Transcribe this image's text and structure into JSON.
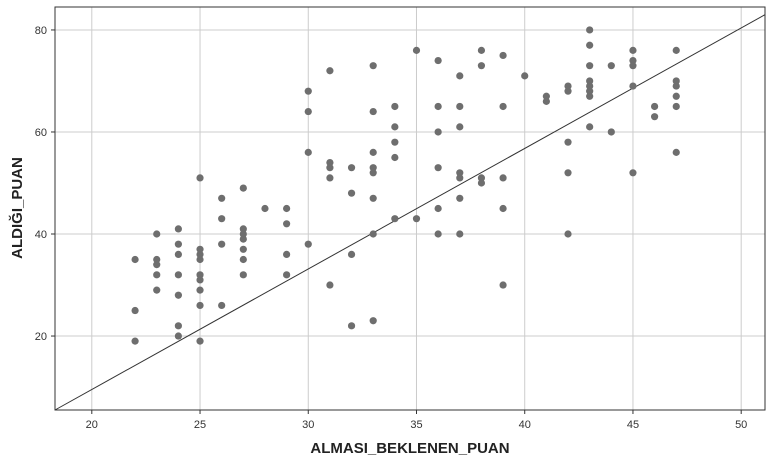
{
  "chart_data": {
    "type": "scatter",
    "title": "",
    "xlabel": "ALMASI_BEKLENEN_PUAN",
    "ylabel": "ALDIĞI_PUAN",
    "xlim": [
      18.3,
      51.1
    ],
    "ylim": [
      5.5,
      84.5
    ],
    "xticks": [
      20,
      25,
      30,
      35,
      40,
      45,
      50
    ],
    "yticks": [
      20,
      40,
      60,
      80
    ],
    "grid": true,
    "colors": {
      "points": "#6e6e6e",
      "grid": "#cccccc",
      "frame": "#333333",
      "reference_line": "#333333"
    },
    "reference_line": {
      "x": [
        18.3,
        51.1
      ],
      "y": [
        5.5,
        83.0
      ]
    },
    "points": [
      [
        22,
        35
      ],
      [
        22,
        25
      ],
      [
        22,
        19
      ],
      [
        23,
        40
      ],
      [
        23,
        35
      ],
      [
        23,
        34
      ],
      [
        23,
        32
      ],
      [
        23,
        29
      ],
      [
        24,
        41
      ],
      [
        24,
        38
      ],
      [
        24,
        36
      ],
      [
        24,
        32
      ],
      [
        24,
        28
      ],
      [
        24,
        22
      ],
      [
        24,
        20
      ],
      [
        25,
        51
      ],
      [
        25,
        37
      ],
      [
        25,
        36
      ],
      [
        25,
        35
      ],
      [
        25,
        32
      ],
      [
        25,
        31
      ],
      [
        25,
        29
      ],
      [
        25,
        26
      ],
      [
        25,
        19
      ],
      [
        26,
        47
      ],
      [
        26,
        43
      ],
      [
        26,
        38
      ],
      [
        26,
        26
      ],
      [
        27,
        49
      ],
      [
        27,
        41
      ],
      [
        27,
        40
      ],
      [
        27,
        39
      ],
      [
        27,
        37
      ],
      [
        27,
        35
      ],
      [
        27,
        32
      ],
      [
        28,
        45
      ],
      [
        29,
        45
      ],
      [
        29,
        42
      ],
      [
        29,
        36
      ],
      [
        29,
        32
      ],
      [
        30,
        68
      ],
      [
        30,
        64
      ],
      [
        30,
        56
      ],
      [
        30,
        38
      ],
      [
        31,
        72
      ],
      [
        31,
        54
      ],
      [
        31,
        53
      ],
      [
        31,
        51
      ],
      [
        31,
        30
      ],
      [
        32,
        53
      ],
      [
        32,
        48
      ],
      [
        32,
        36
      ],
      [
        32,
        22
      ],
      [
        33,
        73
      ],
      [
        33,
        64
      ],
      [
        33,
        56
      ],
      [
        33,
        53
      ],
      [
        33,
        52
      ],
      [
        33,
        47
      ],
      [
        33,
        40
      ],
      [
        33,
        23
      ],
      [
        34,
        65
      ],
      [
        34,
        61
      ],
      [
        34,
        58
      ],
      [
        34,
        55
      ],
      [
        34,
        43
      ],
      [
        35,
        76
      ],
      [
        35,
        43
      ],
      [
        36,
        74
      ],
      [
        36,
        65
      ],
      [
        36,
        60
      ],
      [
        36,
        53
      ],
      [
        36,
        45
      ],
      [
        36,
        40
      ],
      [
        37,
        71
      ],
      [
        37,
        65
      ],
      [
        37,
        61
      ],
      [
        37,
        52
      ],
      [
        37,
        51
      ],
      [
        37,
        47
      ],
      [
        37,
        40
      ],
      [
        38,
        76
      ],
      [
        38,
        73
      ],
      [
        38,
        51
      ],
      [
        38,
        50
      ],
      [
        39,
        75
      ],
      [
        39,
        65
      ],
      [
        39,
        51
      ],
      [
        39,
        45
      ],
      [
        39,
        30
      ],
      [
        40,
        71
      ],
      [
        41,
        67
      ],
      [
        41,
        66
      ],
      [
        42,
        69
      ],
      [
        42,
        68
      ],
      [
        42,
        58
      ],
      [
        42,
        52
      ],
      [
        42,
        40
      ],
      [
        43,
        80
      ],
      [
        43,
        77
      ],
      [
        43,
        73
      ],
      [
        43,
        70
      ],
      [
        43,
        69
      ],
      [
        43,
        68
      ],
      [
        43,
        67
      ],
      [
        43,
        61
      ],
      [
        44,
        73
      ],
      [
        44,
        60
      ],
      [
        45,
        76
      ],
      [
        45,
        74
      ],
      [
        45,
        73
      ],
      [
        45,
        69
      ],
      [
        45,
        52
      ],
      [
        46,
        65
      ],
      [
        46,
        63
      ],
      [
        47,
        76
      ],
      [
        47,
        70
      ],
      [
        47,
        69
      ],
      [
        47,
        67
      ],
      [
        47,
        65
      ],
      [
        47,
        56
      ]
    ]
  }
}
